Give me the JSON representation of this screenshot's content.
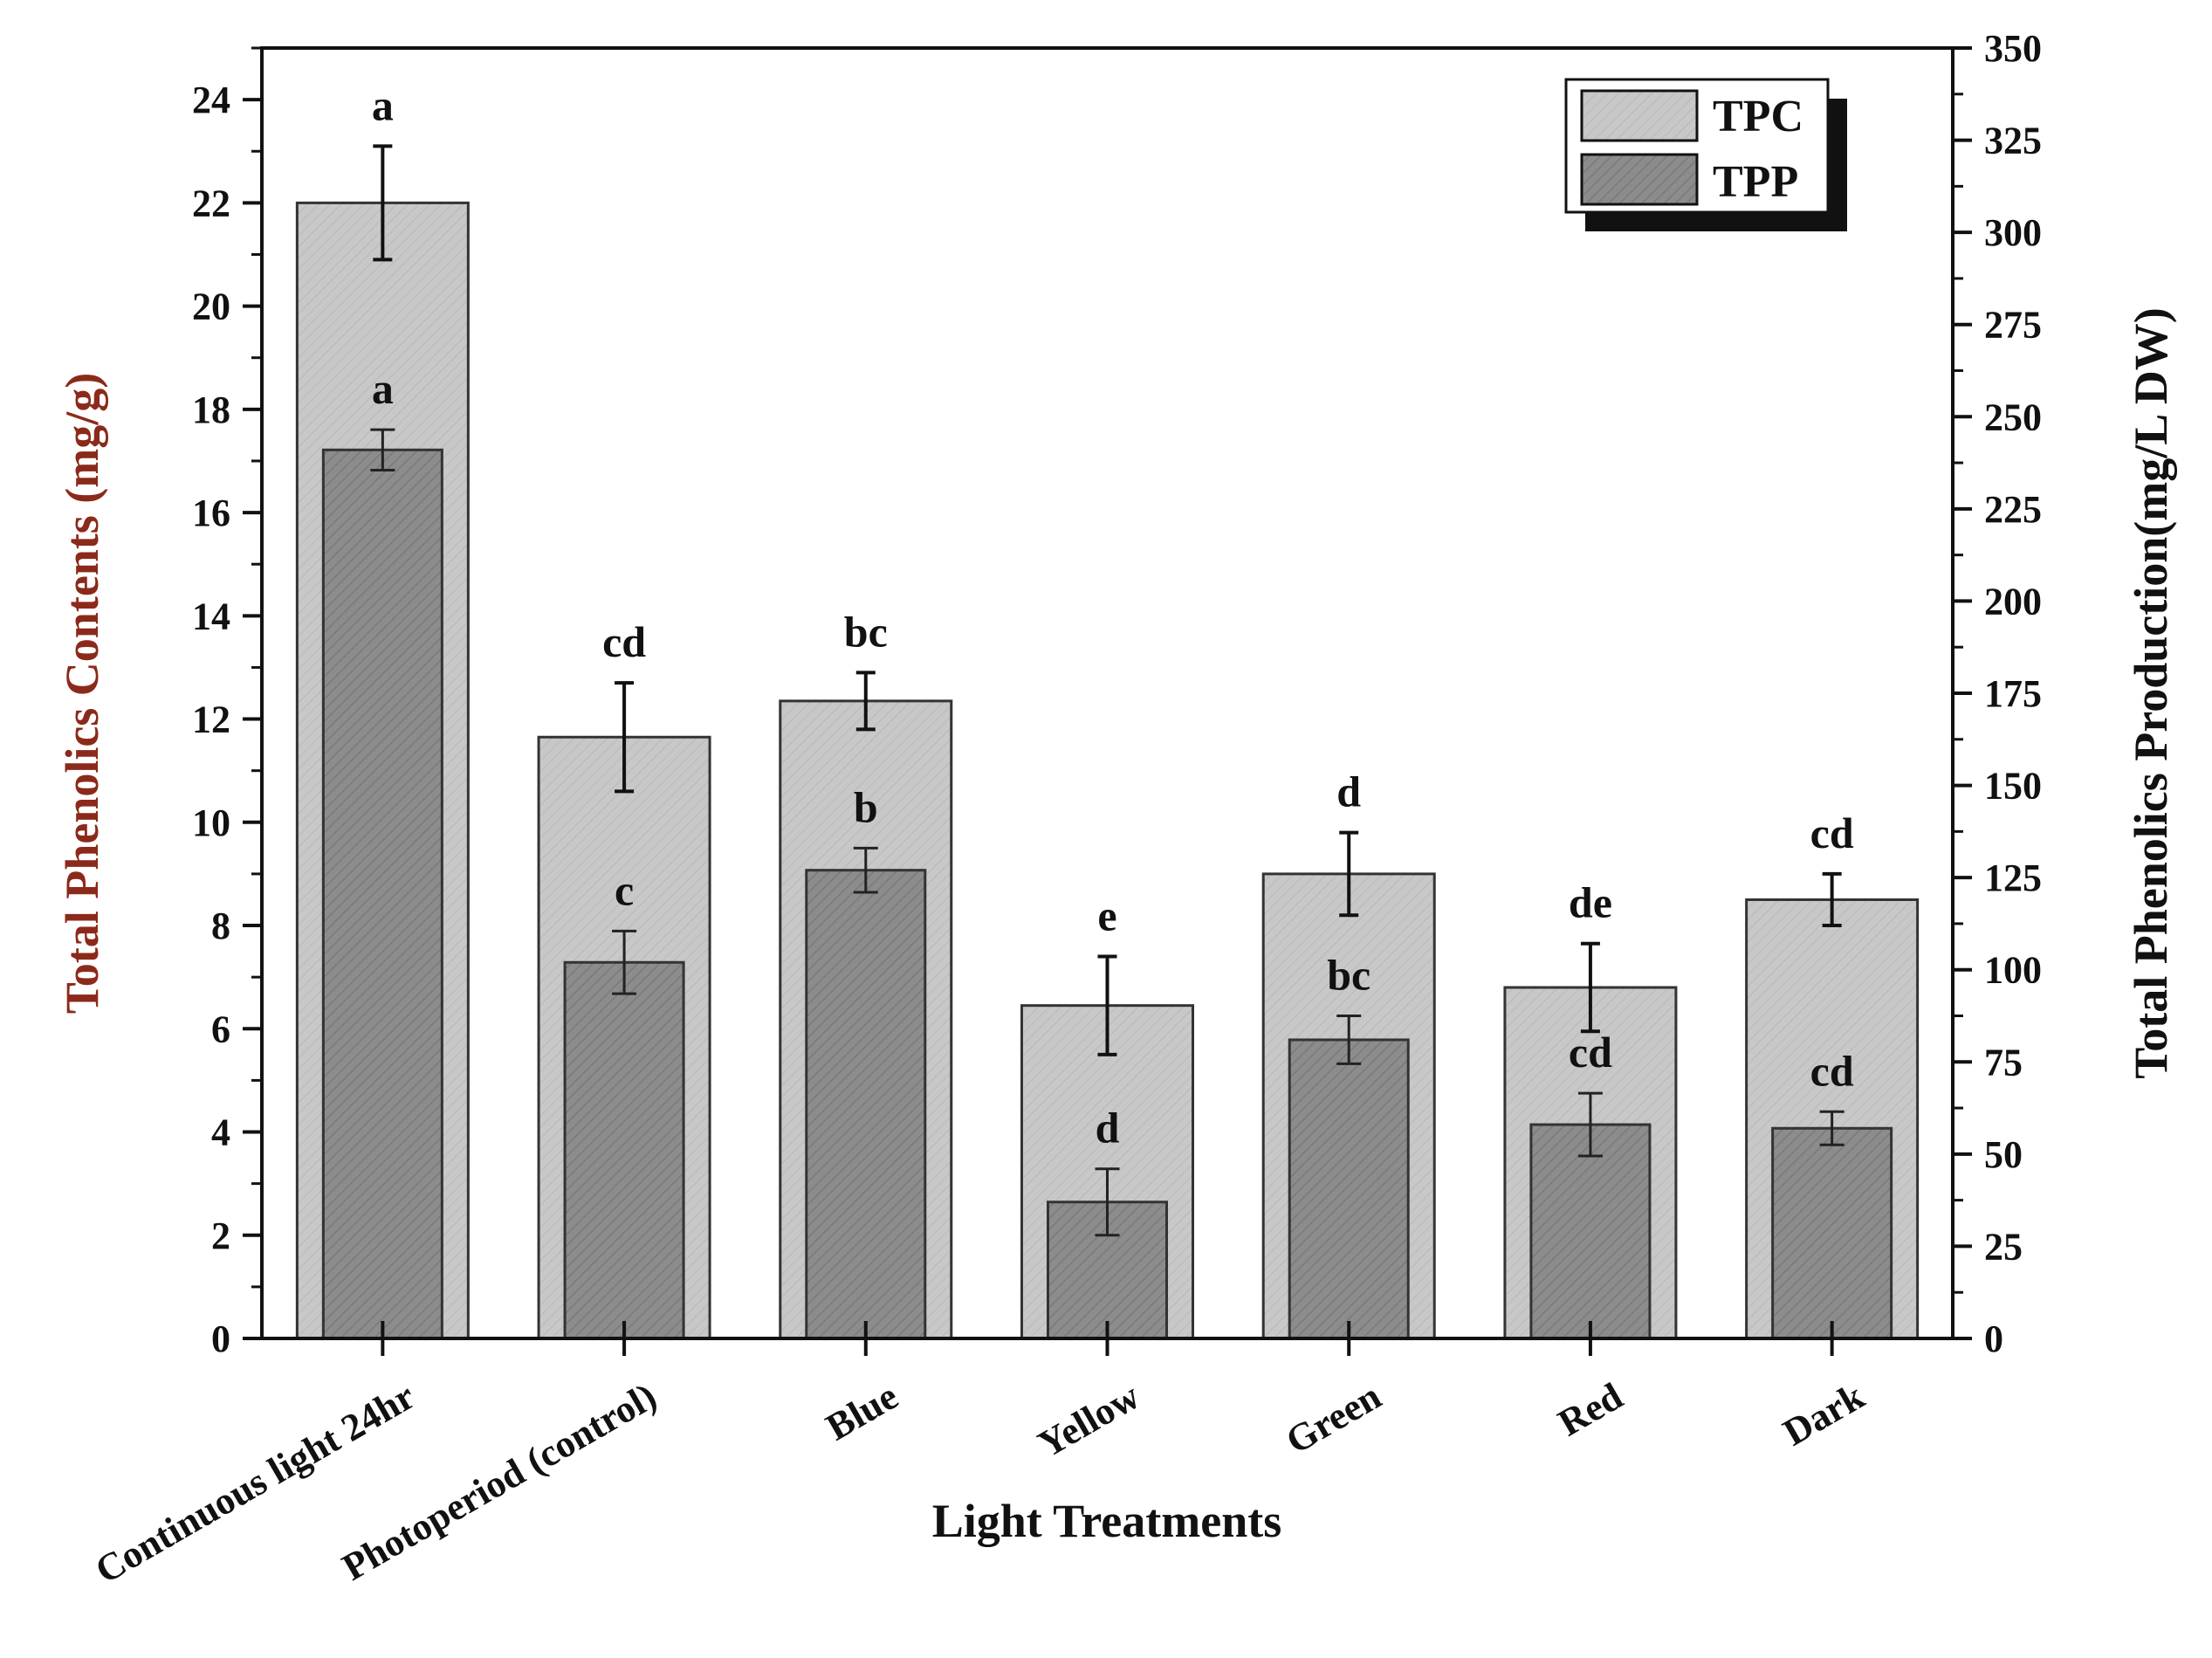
{
  "chart_data": {
    "type": "bar",
    "title": "",
    "xlabel": "Light Treatments",
    "ylabel": "Total Phenolics Contents (mg/g)",
    "y2label": "Total Phenolics Production(mg/L DW)",
    "ylim": [
      0,
      25
    ],
    "y2lim": [
      0,
      350
    ],
    "yticks": [
      "0",
      "2",
      "4",
      "6",
      "8",
      "10",
      "12",
      "14",
      "16",
      "18",
      "20",
      "22",
      "24"
    ],
    "y2ticks": [
      "0",
      "25",
      "50",
      "75",
      "100",
      "125",
      "150",
      "175",
      "200",
      "225",
      "250",
      "275",
      "300",
      "325",
      "350"
    ],
    "categories": [
      "Continuous light 24hr",
      "Photoperiod (control)",
      "Blue",
      "Yellow",
      "Green",
      "Red",
      "Dark"
    ],
    "legend_position": "top-right",
    "series": [
      {
        "name": "TPC",
        "axis": "left",
        "color": "#c8c8c8",
        "values": [
          22.0,
          11.65,
          12.35,
          6.45,
          9.0,
          6.8,
          8.5
        ],
        "errors": [
          1.1,
          1.05,
          0.55,
          0.95,
          0.8,
          0.85,
          0.5
        ],
        "labels": [
          "a",
          "cd",
          "bc",
          "e",
          "d",
          "de",
          "cd"
        ]
      },
      {
        "name": "TPP",
        "axis": "right",
        "color": "#8c8c8c",
        "values": [
          241,
          102,
          127,
          37,
          81,
          58,
          57
        ],
        "errors": [
          5.5,
          8.5,
          6,
          9,
          6.5,
          8.5,
          4.5
        ],
        "labels": [
          "a",
          "c",
          "b",
          "d",
          "bc",
          "cd",
          "cd"
        ]
      }
    ]
  },
  "colors": {
    "axis_title_left": "#8b2a1a",
    "axis_title_right": "#111111",
    "axis": "#111111"
  }
}
